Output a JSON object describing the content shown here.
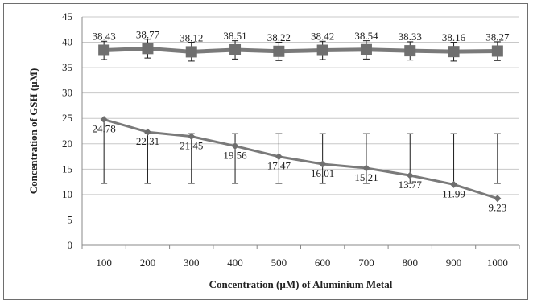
{
  "chart_data": {
    "type": "line",
    "title": "",
    "xlabel": "Concentration (µM) of Aluminium Metal",
    "ylabel": "Concentration of GSH (µM)",
    "ylim": [
      0,
      45
    ],
    "yticks": [
      "0",
      "5",
      "10",
      "15",
      "20",
      "25",
      "30",
      "35",
      "40",
      "45"
    ],
    "categories": [
      "100",
      "200",
      "300",
      "400",
      "500",
      "600",
      "700",
      "800",
      "900",
      "1000"
    ],
    "grid": true,
    "legend": "none",
    "series": [
      {
        "marker": "square",
        "values": [
          38.43,
          38.77,
          38.12,
          38.51,
          38.22,
          38.42,
          38.54,
          38.33,
          38.16,
          38.27
        ],
        "labels": [
          "38.43",
          "38.77",
          "38.12",
          "38.51",
          "38.22",
          "38.42",
          "38.54",
          "38.33",
          "38.16",
          "38.27"
        ],
        "error_low": [
          36.6,
          36.9,
          36.3,
          36.7,
          36.4,
          36.6,
          36.7,
          36.5,
          36.3,
          36.4
        ],
        "error_high": [
          40.2,
          40.6,
          40.0,
          40.3,
          40.0,
          40.2,
          40.3,
          40.1,
          40.0,
          40.1
        ]
      },
      {
        "marker": "diamond",
        "values": [
          24.78,
          22.31,
          21.45,
          19.56,
          17.47,
          16.01,
          15.21,
          13.77,
          11.99,
          9.23
        ],
        "labels": [
          "24.78",
          "22.31",
          "21.45",
          "19.56",
          "17.47",
          "16.01",
          "15.21",
          "13.77",
          "11.99",
          "9.23"
        ],
        "error_low": [
          12.2,
          12.2,
          12.2,
          12.2,
          12.2,
          12.2,
          12.2,
          12.2,
          12.2,
          12.2
        ],
        "error_high": [
          24.78,
          22.0,
          22.0,
          22.0,
          22.0,
          22.0,
          22.0,
          22.0,
          22.0,
          22.0
        ]
      }
    ]
  },
  "colors": {
    "line": "#7a7a7a",
    "marker": "#6f6f6f",
    "error": "#1a1a1a",
    "grid": "#c8c8c8",
    "axis": "#888888"
  }
}
